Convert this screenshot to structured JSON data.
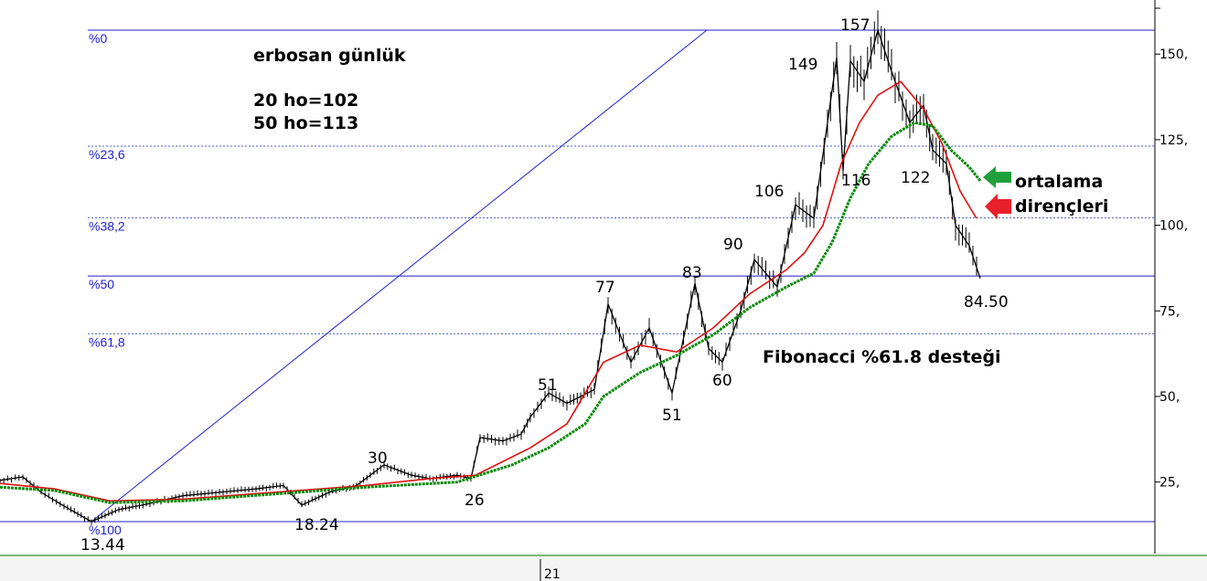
{
  "chart_data": {
    "type": "candlestick",
    "title": "erbosan günlük",
    "notes": [
      "20 ho=102",
      "50 ho=113"
    ],
    "y_ticks": [
      "25,",
      "50,",
      "75,",
      "100,",
      "125,",
      "150,"
    ],
    "y_tick_values": [
      25,
      50,
      75,
      100,
      125,
      150
    ],
    "x_ticks": [
      "21"
    ],
    "ylim": [
      8,
      164
    ],
    "fibonacci": {
      "high": 157,
      "low": 13.44,
      "levels": [
        {
          "label": "%0",
          "value": 157
        },
        {
          "label": "%23,6",
          "value": 123.1
        },
        {
          "label": "%38,2",
          "value": 102.2
        },
        {
          "label": "%50",
          "value": 85.2
        },
        {
          "label": "%61,8",
          "value": 68.3
        },
        {
          "label": "%100",
          "value": 13.44
        }
      ]
    },
    "price_labels": [
      "13.44",
      "18.24",
      "30",
      "26",
      "51",
      "77",
      "51",
      "83",
      "60",
      "90",
      "106",
      "149",
      "116",
      "157",
      "122",
      "84.50"
    ],
    "price_path": [
      [
        0,
        25.5
      ],
      [
        25,
        26.5
      ],
      [
        45,
        22
      ],
      [
        70,
        18
      ],
      [
        100,
        13.44
      ],
      [
        130,
        17
      ],
      [
        160,
        18.5
      ],
      [
        200,
        21
      ],
      [
        240,
        22
      ],
      [
        280,
        23
      ],
      [
        310,
        24
      ],
      [
        330,
        18.24
      ],
      [
        360,
        22
      ],
      [
        390,
        24
      ],
      [
        420,
        30
      ],
      [
        450,
        27
      ],
      [
        470,
        26
      ],
      [
        500,
        27
      ],
      [
        515,
        26
      ],
      [
        525,
        38
      ],
      [
        550,
        37
      ],
      [
        570,
        39
      ],
      [
        580,
        44
      ],
      [
        600,
        51
      ],
      [
        620,
        48
      ],
      [
        650,
        52
      ],
      [
        665,
        77
      ],
      [
        690,
        60
      ],
      [
        710,
        70
      ],
      [
        735,
        51
      ],
      [
        760,
        83
      ],
      [
        775,
        64
      ],
      [
        790,
        60
      ],
      [
        810,
        75
      ],
      [
        825,
        90
      ],
      [
        850,
        82
      ],
      [
        870,
        106
      ],
      [
        890,
        102
      ],
      [
        905,
        130
      ],
      [
        915,
        149
      ],
      [
        922,
        116
      ],
      [
        930,
        148
      ],
      [
        945,
        142
      ],
      [
        960,
        157
      ],
      [
        975,
        145
      ],
      [
        995,
        130
      ],
      [
        1010,
        135
      ],
      [
        1020,
        122
      ],
      [
        1035,
        118
      ],
      [
        1045,
        100
      ],
      [
        1060,
        94
      ],
      [
        1072,
        84.5
      ]
    ],
    "series": [
      {
        "color": "#e01010",
        "values": [
          [
            0,
            24.6
          ],
          [
            60,
            23
          ],
          [
            120,
            19.5
          ],
          [
            200,
            20
          ],
          [
            300,
            22
          ],
          [
            400,
            24
          ],
          [
            470,
            26
          ],
          [
            520,
            27
          ],
          [
            580,
            35
          ],
          [
            620,
            42
          ],
          [
            660,
            60
          ],
          [
            700,
            65
          ],
          [
            740,
            63
          ],
          [
            780,
            70
          ],
          [
            820,
            80
          ],
          [
            860,
            87
          ],
          [
            880,
            92
          ],
          [
            900,
            100
          ],
          [
            920,
            118
          ],
          [
            940,
            130
          ],
          [
            960,
            138
          ],
          [
            985,
            142
          ],
          [
            1010,
            134
          ],
          [
            1030,
            124
          ],
          [
            1050,
            110
          ],
          [
            1068,
            102
          ]
        ]
      },
      {
        "color": "#0a8a0a",
        "values": [
          [
            0,
            23.5
          ],
          [
            60,
            22.5
          ],
          [
            120,
            19
          ],
          [
            200,
            19.5
          ],
          [
            300,
            21.5
          ],
          [
            400,
            23.5
          ],
          [
            500,
            25
          ],
          [
            560,
            30
          ],
          [
            600,
            35
          ],
          [
            640,
            42
          ],
          [
            660,
            50
          ],
          [
            700,
            57
          ],
          [
            740,
            62
          ],
          [
            780,
            68
          ],
          [
            820,
            76
          ],
          [
            860,
            82
          ],
          [
            890,
            86
          ],
          [
            910,
            95
          ],
          [
            930,
            108
          ],
          [
            950,
            118
          ],
          [
            975,
            126
          ],
          [
            1000,
            130
          ],
          [
            1020,
            129
          ],
          [
            1040,
            122
          ],
          [
            1060,
            117
          ],
          [
            1072,
            113
          ]
        ]
      }
    ]
  },
  "labels": {
    "title": "erbosan günlük",
    "ma20": "20 ho=102",
    "ma50": "50 ho=113",
    "resistance_1": "ortalama",
    "resistance_2": "dirençleri",
    "support": "Fibonacci %61.8 desteği",
    "last_price": "84.50"
  },
  "colors": {
    "fib_line": "#2020c8",
    "price": "#000000",
    "ma20": "#e01010",
    "ma50": "#0a8a0a",
    "arrow_green": "#1ea03c",
    "arrow_red": "#e8202c",
    "axis_bottom": "#2e8b2e"
  }
}
